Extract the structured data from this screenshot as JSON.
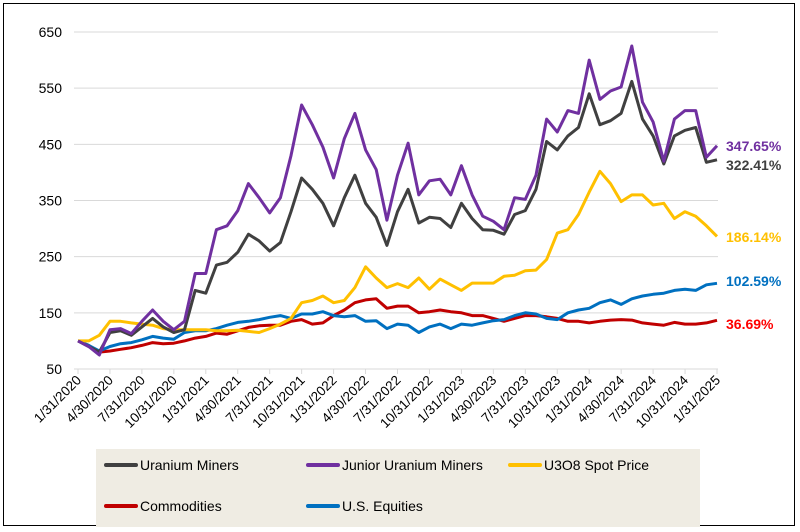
{
  "chart_data": {
    "type": "line",
    "ylim": [
      50,
      650
    ],
    "yticks": [
      50,
      150,
      250,
      350,
      450,
      550,
      650
    ],
    "grid": true,
    "legend_position": "bottom",
    "x_tick_labels": [
      "1/31/2020",
      "4/30/2020",
      "7/31/2020",
      "10/31/2020",
      "1/31/2021",
      "4/30/2021",
      "7/31/2021",
      "10/31/2021",
      "1/31/2022",
      "4/30/2022",
      "7/31/2022",
      "10/31/2022",
      "1/31/2023",
      "4/30/2023",
      "7/31/2023",
      "10/31/2023",
      "1/31/2024",
      "4/30/2024",
      "7/31/2024",
      "10/31/2024",
      "1/31/2025"
    ],
    "x_start": "1/31/2020",
    "x_frequency": "monthly",
    "series": [
      {
        "name": "Uranium Miners",
        "color": "#404040",
        "end_label": "322.41%",
        "values": [
          100,
          90,
          80,
          115,
          118,
          110,
          125,
          140,
          125,
          115,
          120,
          190,
          185,
          235,
          240,
          258,
          290,
          278,
          260,
          275,
          330,
          390,
          370,
          345,
          305,
          355,
          395,
          345,
          320,
          270,
          330,
          370,
          310,
          320,
          318,
          302,
          345,
          318,
          298,
          297,
          290,
          325,
          332,
          370,
          455,
          440,
          465,
          480,
          540,
          485,
          492,
          505,
          562,
          495,
          465,
          415,
          465,
          475,
          480,
          418,
          422.41
        ]
      },
      {
        "name": "Junior Uranium Miners",
        "color": "#7030a0",
        "end_label": "347.65%",
        "values": [
          100,
          90,
          75,
          120,
          122,
          113,
          135,
          155,
          135,
          120,
          135,
          220,
          220,
          298,
          305,
          332,
          380,
          355,
          328,
          355,
          430,
          520,
          485,
          445,
          390,
          460,
          505,
          440,
          405,
          315,
          395,
          452,
          360,
          385,
          388,
          360,
          412,
          360,
          322,
          313,
          298,
          355,
          352,
          395,
          495,
          472,
          510,
          505,
          600,
          530,
          545,
          552,
          625,
          525,
          490,
          420,
          495,
          510,
          510,
          427,
          447.65
        ]
      },
      {
        "name": "U3O8 Spot Price",
        "color": "#ffc000",
        "end_label": "186.14%",
        "values": [
          100,
          100,
          110,
          135,
          135,
          132,
          130,
          128,
          122,
          120,
          120,
          120,
          120,
          118,
          118,
          119,
          117,
          115,
          122,
          130,
          140,
          168,
          172,
          180,
          168,
          172,
          195,
          232,
          212,
          195,
          202,
          195,
          212,
          192,
          210,
          200,
          190,
          203,
          203,
          203,
          215,
          217,
          225,
          226,
          245,
          292,
          298,
          325,
          365,
          402,
          380,
          348,
          360,
          360,
          342,
          345,
          318,
          330,
          322,
          305,
          286.14
        ]
      },
      {
        "name": "Commodities",
        "color": "#c00000",
        "end_label": "36.69%",
        "values": [
          100,
          92,
          80,
          82,
          85,
          88,
          92,
          97,
          95,
          96,
          100,
          105,
          108,
          114,
          112,
          118,
          124,
          127,
          128,
          128,
          135,
          138,
          130,
          132,
          145,
          155,
          168,
          173,
          175,
          158,
          162,
          162,
          150,
          152,
          155,
          152,
          150,
          145,
          145,
          140,
          135,
          140,
          145,
          145,
          143,
          140,
          135,
          135,
          132,
          135,
          137,
          138,
          137,
          132,
          130,
          128,
          133,
          130,
          130,
          132,
          136.69
        ]
      },
      {
        "name": "U.S. Equities",
        "color": "#0070c0",
        "end_label": "102.59%",
        "values": [
          100,
          92,
          82,
          90,
          95,
          97,
          102,
          108,
          105,
          103,
          115,
          118,
          118,
          122,
          128,
          133,
          135,
          138,
          142,
          145,
          140,
          148,
          148,
          152,
          145,
          143,
          145,
          135,
          136,
          122,
          130,
          128,
          115,
          125,
          130,
          122,
          130,
          128,
          132,
          136,
          138,
          145,
          150,
          148,
          140,
          138,
          150,
          155,
          158,
          168,
          173,
          165,
          175,
          180,
          183,
          185,
          190,
          192,
          190,
          200,
          202.59
        ]
      }
    ],
    "end_label_colors": [
      "#7030a0",
      "#404040",
      "#ffc000",
      "#0070c0",
      "#ff0000"
    ]
  }
}
